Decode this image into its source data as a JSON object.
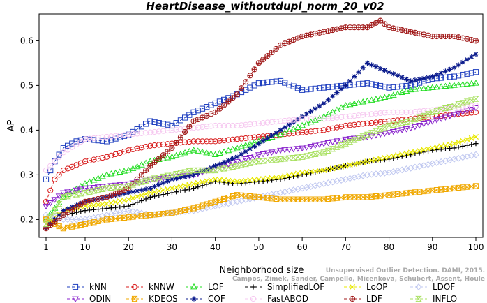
{
  "chart_data": {
    "type": "line",
    "title": "HeartDisease_withoutdupl_norm_20_v02",
    "xlabel": "Neighborhood size",
    "ylabel": "AP",
    "xlim": [
      1,
      100
    ],
    "ylim": [
      0.16,
      0.66
    ],
    "xticks": [
      1,
      10,
      20,
      30,
      40,
      50,
      60,
      70,
      80,
      90,
      100
    ],
    "yticks": [
      0.2,
      0.3,
      0.4,
      0.5,
      0.6
    ],
    "grid": false,
    "legend_position": "bottom",
    "watermark": [
      "Campos, Zimek, Sander, Campello, Micenkova, Schubert, Assent, Houle",
      "Unsupervised Outlier Detection. DAMI, 2015."
    ],
    "series": [
      {
        "name": "kNN",
        "color": "#1f3fbf",
        "marker": "square",
        "x": [
          1,
          3,
          5,
          8,
          10,
          15,
          20,
          25,
          30,
          35,
          40,
          45,
          50,
          55,
          60,
          65,
          70,
          75,
          80,
          85,
          90,
          95,
          100
        ],
        "y": [
          0.29,
          0.33,
          0.36,
          0.375,
          0.38,
          0.375,
          0.39,
          0.42,
          0.41,
          0.44,
          0.46,
          0.48,
          0.505,
          0.51,
          0.49,
          0.495,
          0.5,
          0.505,
          0.495,
          0.5,
          0.515,
          0.52,
          0.53
        ]
      },
      {
        "name": "kNNW",
        "color": "#d81e1e",
        "marker": "circle",
        "x": [
          1,
          3,
          5,
          10,
          15,
          20,
          25,
          30,
          35,
          40,
          45,
          50,
          55,
          60,
          65,
          70,
          75,
          80,
          85,
          90,
          95,
          100
        ],
        "y": [
          0.24,
          0.29,
          0.31,
          0.33,
          0.34,
          0.355,
          0.365,
          0.37,
          0.375,
          0.375,
          0.38,
          0.385,
          0.39,
          0.395,
          0.4,
          0.41,
          0.415,
          0.42,
          0.425,
          0.43,
          0.435,
          0.44
        ]
      },
      {
        "name": "LOF",
        "color": "#22dd22",
        "marker": "triangle-up",
        "x": [
          1,
          5,
          10,
          15,
          20,
          25,
          30,
          35,
          40,
          45,
          50,
          55,
          60,
          65,
          70,
          75,
          80,
          85,
          90,
          95,
          100
        ],
        "y": [
          0.2,
          0.25,
          0.28,
          0.3,
          0.31,
          0.33,
          0.34,
          0.355,
          0.345,
          0.36,
          0.375,
          0.39,
          0.41,
          0.43,
          0.455,
          0.465,
          0.475,
          0.49,
          0.495,
          0.5,
          0.505
        ]
      },
      {
        "name": "SimplifiedLOF",
        "color": "#000000",
        "marker": "plus",
        "x": [
          1,
          5,
          10,
          15,
          20,
          25,
          30,
          35,
          40,
          45,
          50,
          55,
          60,
          65,
          70,
          75,
          80,
          85,
          90,
          95,
          100
        ],
        "y": [
          0.18,
          0.21,
          0.22,
          0.225,
          0.23,
          0.25,
          0.26,
          0.27,
          0.285,
          0.28,
          0.285,
          0.29,
          0.3,
          0.31,
          0.32,
          0.33,
          0.335,
          0.345,
          0.355,
          0.36,
          0.37
        ]
      },
      {
        "name": "LoOP",
        "color": "#e8e800",
        "marker": "x",
        "x": [
          1,
          5,
          10,
          15,
          20,
          25,
          30,
          35,
          40,
          45,
          50,
          55,
          60,
          65,
          70,
          75,
          80,
          85,
          90,
          95,
          100
        ],
        "y": [
          0.19,
          0.22,
          0.23,
          0.235,
          0.245,
          0.26,
          0.27,
          0.28,
          0.29,
          0.285,
          0.29,
          0.295,
          0.305,
          0.31,
          0.32,
          0.33,
          0.34,
          0.35,
          0.36,
          0.37,
          0.385
        ]
      },
      {
        "name": "LDOF",
        "color": "#c0c8f0",
        "marker": "diamond",
        "x": [
          1,
          5,
          10,
          15,
          20,
          25,
          30,
          35,
          40,
          45,
          50,
          55,
          60,
          65,
          70,
          75,
          80,
          85,
          90,
          95,
          100
        ],
        "y": [
          0.21,
          0.2,
          0.2,
          0.21,
          0.22,
          0.21,
          0.215,
          0.22,
          0.23,
          0.24,
          0.25,
          0.26,
          0.27,
          0.28,
          0.29,
          0.3,
          0.305,
          0.315,
          0.325,
          0.335,
          0.345
        ]
      },
      {
        "name": "ODIN",
        "color": "#8822cc",
        "marker": "triangle-down",
        "x": [
          1,
          5,
          10,
          15,
          20,
          25,
          30,
          35,
          40,
          45,
          50,
          55,
          60,
          65,
          70,
          75,
          80,
          85,
          90,
          95,
          100
        ],
        "y": [
          0.23,
          0.26,
          0.27,
          0.275,
          0.28,
          0.29,
          0.295,
          0.3,
          0.315,
          0.33,
          0.345,
          0.355,
          0.36,
          0.37,
          0.38,
          0.385,
          0.395,
          0.405,
          0.42,
          0.435,
          0.45
        ]
      },
      {
        "name": "KDEOS",
        "color": "#f0a800",
        "marker": "square-x",
        "x": [
          1,
          5,
          10,
          15,
          20,
          25,
          30,
          35,
          40,
          45,
          50,
          55,
          60,
          65,
          70,
          75,
          80,
          85,
          90,
          95,
          100
        ],
        "y": [
          0.2,
          0.18,
          0.19,
          0.2,
          0.205,
          0.21,
          0.215,
          0.225,
          0.24,
          0.255,
          0.25,
          0.245,
          0.245,
          0.245,
          0.25,
          0.25,
          0.255,
          0.26,
          0.265,
          0.27,
          0.275
        ]
      },
      {
        "name": "COF",
        "color": "#0a1a8c",
        "marker": "asterisk",
        "x": [
          1,
          5,
          10,
          15,
          20,
          25,
          30,
          35,
          40,
          45,
          50,
          55,
          60,
          65,
          70,
          75,
          80,
          85,
          90,
          95,
          100
        ],
        "y": [
          0.18,
          0.22,
          0.24,
          0.25,
          0.26,
          0.27,
          0.29,
          0.3,
          0.32,
          0.34,
          0.37,
          0.4,
          0.43,
          0.46,
          0.5,
          0.55,
          0.53,
          0.51,
          0.52,
          0.54,
          0.57
        ]
      },
      {
        "name": "FastABOD",
        "color": "#f6c8f0",
        "marker": "circle",
        "x": [
          1,
          5,
          10,
          15,
          20,
          25,
          30,
          35,
          40,
          45,
          50,
          55,
          60,
          65,
          70,
          75,
          80,
          85,
          90,
          95,
          100
        ],
        "y": [
          0.31,
          0.35,
          0.38,
          0.385,
          0.39,
          0.395,
          0.4,
          0.405,
          0.41,
          0.41,
          0.415,
          0.42,
          0.425,
          0.425,
          0.43,
          0.435,
          0.44,
          0.44,
          0.445,
          0.45,
          0.455
        ]
      },
      {
        "name": "LDF",
        "color": "#a01818",
        "marker": "circle-plus",
        "x": [
          1,
          5,
          10,
          15,
          20,
          25,
          30,
          35,
          40,
          45,
          50,
          55,
          60,
          65,
          70,
          75,
          78,
          80,
          85,
          90,
          95,
          100
        ],
        "y": [
          0.18,
          0.21,
          0.24,
          0.25,
          0.27,
          0.32,
          0.36,
          0.42,
          0.44,
          0.48,
          0.55,
          0.59,
          0.61,
          0.62,
          0.63,
          0.63,
          0.645,
          0.63,
          0.62,
          0.61,
          0.61,
          0.6
        ]
      },
      {
        "name": "INFLO",
        "color": "#a8e060",
        "marker": "hourglass",
        "x": [
          1,
          5,
          10,
          15,
          20,
          25,
          30,
          35,
          40,
          45,
          50,
          55,
          60,
          65,
          70,
          75,
          80,
          85,
          90,
          95,
          100
        ],
        "y": [
          0.19,
          0.25,
          0.26,
          0.27,
          0.275,
          0.29,
          0.3,
          0.31,
          0.31,
          0.32,
          0.33,
          0.335,
          0.34,
          0.35,
          0.37,
          0.39,
          0.41,
          0.42,
          0.44,
          0.455,
          0.47
        ]
      }
    ]
  }
}
